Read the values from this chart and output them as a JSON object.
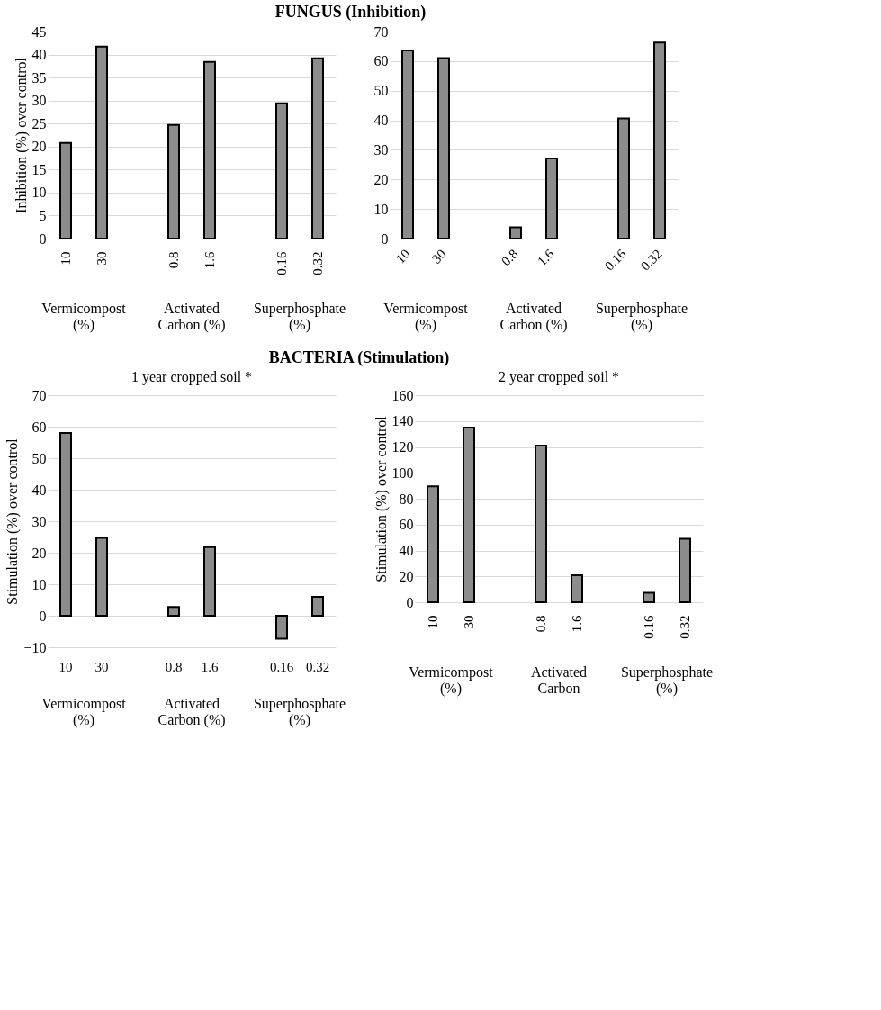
{
  "chart_data": [
    {
      "type": "bar",
      "title": "FUNGUS (Inhibition)",
      "ylabel": "Inhibition (%) over control",
      "categories": [
        "10",
        "30",
        null,
        "0.8",
        "1.6",
        null,
        "0.16",
        "0.32"
      ],
      "values": [
        20.8,
        41.7,
        null,
        24.7,
        38.4,
        null,
        29.4,
        39.2
      ],
      "color": "#8c8c8c",
      "ylim": [
        0,
        45
      ],
      "yticks": [
        0,
        5,
        10,
        15,
        20,
        25,
        30,
        35,
        40,
        45
      ],
      "grid": "y",
      "annotations": [
        "Vermicompost\n(%)",
        "Activated\nCarbon (%)",
        "Superphosphate\n(%)"
      ]
    },
    {
      "type": "bar",
      "categories": [
        "10",
        "30",
        null,
        "0.8",
        "1.6",
        null,
        "0.16",
        "0.32"
      ],
      "values": [
        63.6,
        61,
        null,
        3.8,
        27.1,
        null,
        40.6,
        66.3
      ],
      "color": "#8c8c8c",
      "ylim": [
        0,
        70
      ],
      "yticks": [
        0,
        10,
        20,
        30,
        40,
        50,
        60,
        70
      ],
      "grid": "y",
      "annotations": [
        "Vermicompost\n(%)",
        "Activated\nCarbon (%)",
        "Superphosphate\n(%)"
      ]
    },
    {
      "type": "bar",
      "title": "BACTERIA (Stimulation)",
      "subtitle": "1 year cropped soil *",
      "ylabel": "Stimulation (%) over control",
      "categories": [
        "10",
        "30",
        null,
        "0.8",
        "1.6",
        null,
        "0.16",
        "0.32"
      ],
      "values": [
        58,
        24.7,
        null,
        2.8,
        21.8,
        null,
        -7.3,
        6
      ],
      "color": "#8c8c8c",
      "ylim": [
        -10,
        70
      ],
      "yticks": [
        -10,
        0,
        10,
        20,
        30,
        40,
        50,
        60,
        70
      ],
      "grid": "y",
      "annotations": [
        "Vermicompost\n(%)",
        "Activated\nCarbon (%)",
        "Superphosphate\n(%)"
      ]
    },
    {
      "type": "bar",
      "subtitle": "2 year cropped soil *",
      "ylabel": "Stimulation (%) over control",
      "categories": [
        "10",
        "30",
        null,
        "0.8",
        "1.6",
        null,
        "0.16",
        "0.32"
      ],
      "values": [
        89.5,
        135,
        null,
        121,
        20.8,
        null,
        7.3,
        49
      ],
      "color": "#8c8c8c",
      "ylim": [
        0,
        160
      ],
      "yticks": [
        0,
        20,
        40,
        60,
        80,
        100,
        120,
        140,
        160
      ],
      "grid": "y",
      "annotations": [
        "Vermicompost\n(%)",
        "Activated\nCarbon",
        "Superphosphate\n(%)"
      ]
    }
  ]
}
